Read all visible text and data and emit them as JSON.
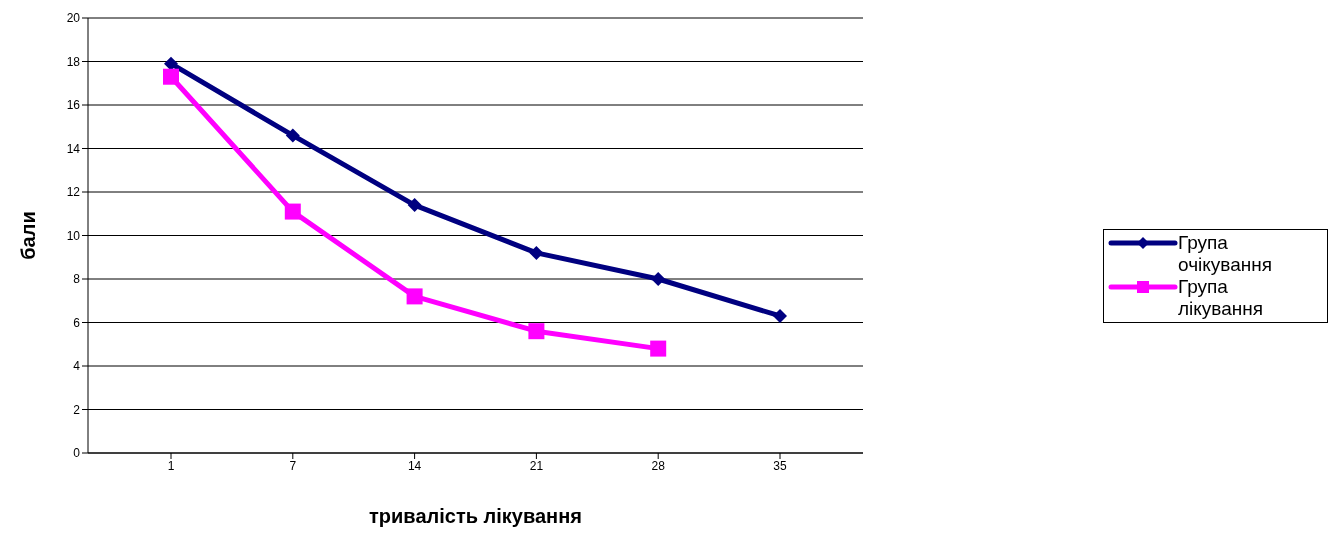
{
  "chart_data": {
    "type": "line",
    "xlabel": "тривалість лікування",
    "ylabel": "бали",
    "categories": [
      "1",
      "7",
      "14",
      "21",
      "28",
      "35"
    ],
    "series": [
      {
        "name": "Група очікування",
        "color": "#000080",
        "marker": "diamond",
        "values": [
          17.9,
          14.6,
          11.4,
          9.2,
          8.0,
          6.3
        ]
      },
      {
        "name": "Група лікування",
        "color": "#ff00ff",
        "marker": "square",
        "values": [
          17.3,
          11.1,
          7.2,
          5.6,
          4.8,
          null
        ]
      }
    ],
    "ylim": [
      0,
      20
    ],
    "yticks": [
      0,
      2,
      4,
      6,
      8,
      10,
      12,
      14,
      16,
      18,
      20
    ],
    "grid": "y",
    "legend": "right"
  }
}
